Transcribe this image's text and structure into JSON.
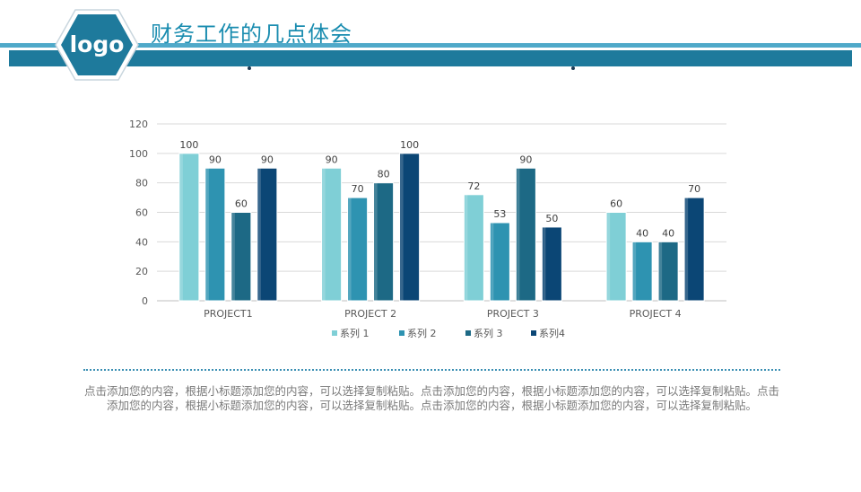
{
  "header": {
    "title": "财务工作的几点体会",
    "logo_text": "logo"
  },
  "colors": {
    "accent": "#1e7a9c",
    "accent_light": "#4fa9c9",
    "series": [
      "#7fcfd6",
      "#2e93b1",
      "#1d6985",
      "#0b4675"
    ]
  },
  "chart_data": {
    "type": "bar",
    "categories": [
      "PROJECT1",
      "PROJECT 2",
      "PROJECT 3",
      "PROJECT 4"
    ],
    "series": [
      {
        "name": "系列 1",
        "values": [
          100,
          90,
          72,
          60
        ]
      },
      {
        "name": "系列 2",
        "values": [
          90,
          70,
          53,
          40
        ]
      },
      {
        "name": "系列 3",
        "values": [
          60,
          80,
          90,
          40
        ]
      },
      {
        "name": "系列4",
        "values": [
          90,
          100,
          50,
          70
        ]
      }
    ],
    "ylim": [
      0,
      120
    ],
    "yticks": [
      0,
      20,
      40,
      60,
      80,
      100,
      120
    ],
    "grid": true,
    "legend": "bottom",
    "data_labels": true
  },
  "body": {
    "paragraph": "点击添加您的内容，根据小标题添加您的内容，可以选择复制粘贴。点击添加您的内容，根据小标题添加您的内容，可以选择复制粘贴。点击添加您的内容，根据小标题添加您的内容，可以选择复制粘贴。点击添加您的内容，根据小标题添加您的内容，可以选择复制粘贴。"
  }
}
